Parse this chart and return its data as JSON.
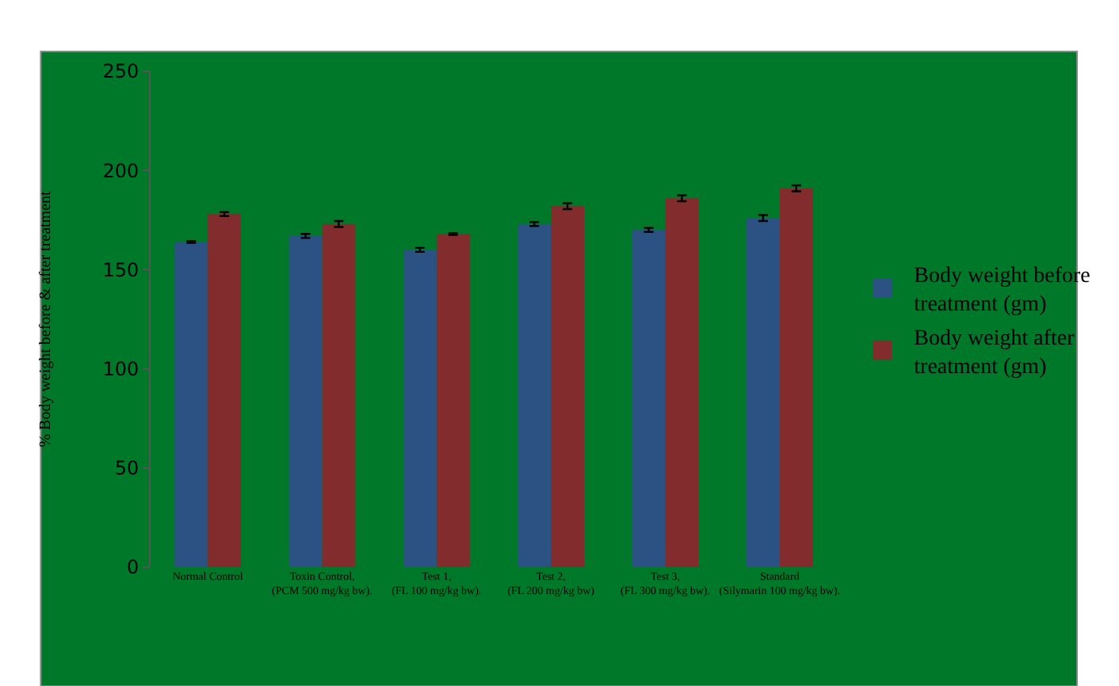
{
  "chart_data": {
    "type": "bar",
    "ylabel": "% Body weight before & after treatment",
    "categories": [
      "Normal Control",
      "Toxin Control,\n(PCM 500 mg/kg bw).",
      "Test 1,\n(FL 100 mg/kg bw).",
      "Test 2,\n(FL 200 mg/kg bw)",
      "Test 3,\n(FL 300 mg/kg bw).",
      "Standard\n(Silymarin 100 mg/kg bw)."
    ],
    "series": [
      {
        "name": "Body weight before treatment (gm)",
        "color": "#2b5283",
        "values": [
          164,
          167,
          160,
          173,
          170,
          176
        ],
        "errors": [
          0.5,
          1,
          1,
          1,
          1,
          1.5
        ]
      },
      {
        "name": "Body weight after treatment (gm)",
        "color": "#822c2d",
        "values": [
          178,
          173,
          168,
          182,
          186,
          191
        ],
        "errors": [
          1,
          1.5,
          0.5,
          1.5,
          1.5,
          1.5
        ]
      }
    ],
    "ylim": [
      0,
      250
    ],
    "yticks": [
      0,
      50,
      100,
      150,
      200,
      250
    ],
    "grid": false,
    "legend": "right"
  }
}
